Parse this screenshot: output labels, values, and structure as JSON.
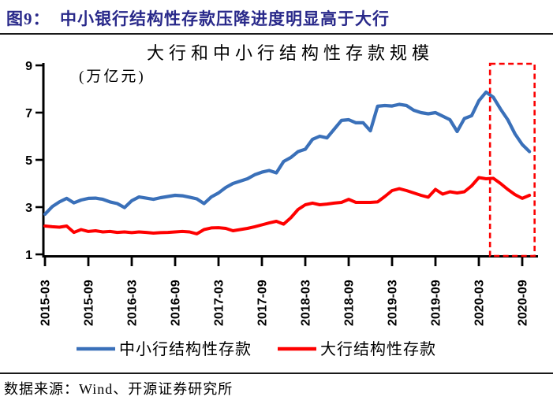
{
  "report": {
    "figure_title": "图9：  中小银行结构性存款压降进度明显高于大行",
    "source": "数据来源：Wind、开源证券研究所"
  },
  "colors": {
    "title_navy": "#29298A",
    "axis": "#000000",
    "blue_line": "#3A70B9",
    "red_line": "#FE0000",
    "highlight_red": "#FB0202"
  },
  "chart_data": {
    "type": "line",
    "title": "大行和中小行结构性存款规模",
    "unit_label": "(万亿元)",
    "ylim": [
      1,
      9
    ],
    "yticks": [
      9,
      7,
      5,
      3,
      1
    ],
    "grid": false,
    "legend_position": "bottom",
    "xtick_labels": [
      "2015-03",
      "2015-09",
      "2016-03",
      "2016-09",
      "2017-03",
      "2017-09",
      "2018-03",
      "2018-09",
      "2019-03",
      "2019-09",
      "2020-03",
      "2020-09"
    ],
    "months": [
      "2015-03",
      "2015-04",
      "2015-05",
      "2015-06",
      "2015-07",
      "2015-08",
      "2015-09",
      "2015-10",
      "2015-11",
      "2015-12",
      "2016-01",
      "2016-02",
      "2016-03",
      "2016-04",
      "2016-05",
      "2016-06",
      "2016-07",
      "2016-08",
      "2016-09",
      "2016-10",
      "2016-11",
      "2016-12",
      "2017-01",
      "2017-02",
      "2017-03",
      "2017-04",
      "2017-05",
      "2017-06",
      "2017-07",
      "2017-08",
      "2017-09",
      "2017-10",
      "2017-11",
      "2017-12",
      "2018-01",
      "2018-02",
      "2018-03",
      "2018-04",
      "2018-05",
      "2018-06",
      "2018-07",
      "2018-08",
      "2018-09",
      "2018-10",
      "2018-11",
      "2018-12",
      "2019-01",
      "2019-02",
      "2019-03",
      "2019-04",
      "2019-05",
      "2019-06",
      "2019-07",
      "2019-08",
      "2019-09",
      "2019-10",
      "2019-11",
      "2019-12",
      "2020-01",
      "2020-02",
      "2020-03",
      "2020-04",
      "2020-05",
      "2020-06",
      "2020-07",
      "2020-08",
      "2020-09",
      "2020-10"
    ],
    "series": [
      {
        "name": "中小行结构性存款",
        "color": "#3A70B9",
        "values": [
          2.7,
          3.02,
          3.22,
          3.37,
          3.18,
          3.3,
          3.37,
          3.38,
          3.33,
          3.22,
          3.15,
          2.98,
          3.27,
          3.43,
          3.38,
          3.33,
          3.4,
          3.45,
          3.5,
          3.48,
          3.42,
          3.35,
          3.15,
          3.43,
          3.6,
          3.83,
          4.0,
          4.1,
          4.2,
          4.37,
          4.48,
          4.55,
          4.45,
          4.93,
          5.1,
          5.35,
          5.45,
          5.87,
          6.0,
          5.93,
          6.3,
          6.67,
          6.7,
          6.57,
          6.57,
          6.23,
          7.27,
          7.3,
          7.28,
          7.35,
          7.3,
          7.1,
          7.0,
          6.95,
          7.0,
          6.85,
          6.7,
          6.2,
          6.75,
          6.87,
          7.5,
          7.87,
          7.65,
          7.15,
          6.7,
          6.1,
          5.65,
          5.35
        ]
      },
      {
        "name": "大行结构性存款",
        "color": "#FE0000",
        "values": [
          2.2,
          2.17,
          2.15,
          2.2,
          1.93,
          2.05,
          1.97,
          2.0,
          1.95,
          1.97,
          1.93,
          1.95,
          1.92,
          1.95,
          1.93,
          1.9,
          1.92,
          1.93,
          1.95,
          1.97,
          1.95,
          1.87,
          2.05,
          2.12,
          2.13,
          2.1,
          2.0,
          2.05,
          2.1,
          2.17,
          2.25,
          2.33,
          2.4,
          2.28,
          2.55,
          2.9,
          3.1,
          3.17,
          3.1,
          3.13,
          3.17,
          3.2,
          3.33,
          3.2,
          3.2,
          3.2,
          3.22,
          3.45,
          3.7,
          3.78,
          3.7,
          3.6,
          3.5,
          3.42,
          3.75,
          3.55,
          3.65,
          3.6,
          3.65,
          3.9,
          4.25,
          4.2,
          4.22,
          4.0,
          3.75,
          3.53,
          3.37,
          3.5
        ]
      }
    ],
    "highlight_box": {
      "from_month": "2020-04",
      "to_month": "2020-10",
      "color": "#FB0202",
      "style": "dashed"
    }
  }
}
